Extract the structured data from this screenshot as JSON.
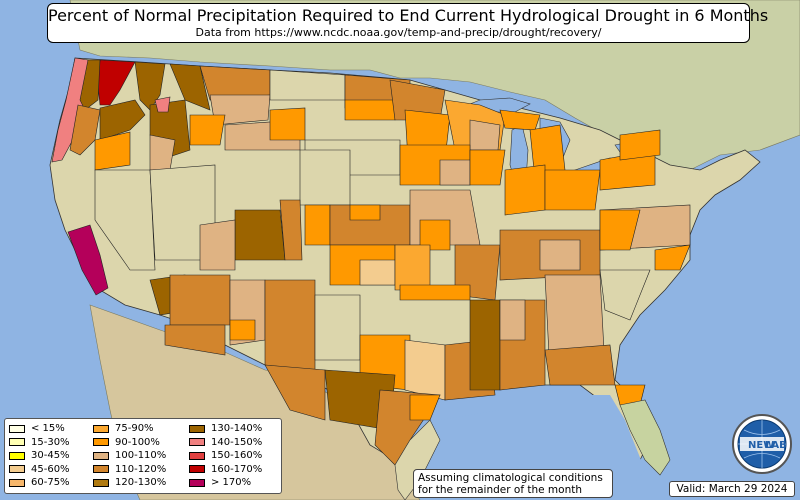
{
  "title": "Percent of Normal Precipitation Required to End Current Hydrological Drought in 6 Months",
  "subtitle": "Data from https://www.ncdc.noaa.gov/temp-and-precip/drought/recovery/",
  "legend": {
    "items": [
      {
        "label": "< 15%",
        "color": "#ffffe6"
      },
      {
        "label": "15-30%",
        "color": "#ffffb3"
      },
      {
        "label": "30-45%",
        "color": "#ffff00"
      },
      {
        "label": "45-60%",
        "color": "#f3cc8f"
      },
      {
        "label": "60-75%",
        "color": "#f7b76c"
      },
      {
        "label": "75-90%",
        "color": "#fba830"
      },
      {
        "label": "90-100%",
        "color": "#ff9900"
      },
      {
        "label": "100-110%",
        "color": "#dfb383"
      },
      {
        "label": "110-120%",
        "color": "#d2852d"
      },
      {
        "label": "120-130%",
        "color": "#b07a10"
      },
      {
        "label": "130-140%",
        "color": "#9c6400"
      },
      {
        "label": "140-150%",
        "color": "#f08080"
      },
      {
        "label": "150-160%",
        "color": "#e04040"
      },
      {
        "label": "160-170%",
        "color": "#c00000"
      },
      {
        "label": "> 170%",
        "color": "#b4005a"
      }
    ]
  },
  "note": {
    "line1": "Assuming climatological conditions",
    "line2": "for the remainder of the month"
  },
  "valid": "Valid: March 29 2024",
  "logo": {
    "text_top": "NEW",
    "text_bottom": "LAB"
  },
  "colors": {
    "ocean": "#8fb4e3",
    "land": "#dcd8b0",
    "land_green": "#b9c98f",
    "canada": "#c8cfa0",
    "mexico": "#d8c9a0",
    "lakes": "#8fb4e3"
  }
}
